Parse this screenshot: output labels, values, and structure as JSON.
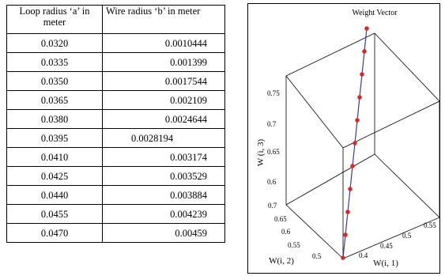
{
  "table": {
    "headers": [
      "Loop radius ‘a’ in meter",
      "Wire radius ‘b’ in meter"
    ],
    "rows": [
      [
        "0.0320",
        "0.0010444"
      ],
      [
        "0.0335",
        "0.001399"
      ],
      [
        "0.0350",
        "0.0017544"
      ],
      [
        "0.0365",
        "0.002109"
      ],
      [
        "0.0380",
        "0.0024644"
      ],
      [
        "0.0395",
        "0.0028194"
      ],
      [
        "0.0410",
        "0.003174"
      ],
      [
        "0.0425",
        "0.003529"
      ],
      [
        "0.0440",
        "0.003884"
      ],
      [
        "0.0455",
        "0.004239"
      ],
      [
        "0.0470",
        "0.00459"
      ]
    ]
  },
  "chart_data": {
    "type": "scatter",
    "title": "Weight Vector",
    "zlabel": "W (i, 3)",
    "ylabel": "W(i, 2)",
    "xlabel": "W(i, 1)",
    "z_ticks": [
      "0.75",
      "0.7",
      "0.65",
      "0.6"
    ],
    "y_ticks": [
      "0.7",
      "0.65",
      "0.6",
      "0.55",
      "0.5"
    ],
    "x_ticks": [
      "0.4",
      "0.45",
      "0.5",
      "0.55"
    ],
    "marker_color": "#d42a2a",
    "line_color": "#3b3b8f",
    "points": [
      {
        "x": 0.37,
        "y": 0.49,
        "z": 0.49
      },
      {
        "x": 0.38,
        "y": 0.51,
        "z": 0.52
      },
      {
        "x": 0.39,
        "y": 0.53,
        "z": 0.55
      },
      {
        "x": 0.4,
        "y": 0.55,
        "z": 0.58
      },
      {
        "x": 0.41,
        "y": 0.57,
        "z": 0.61
      },
      {
        "x": 0.42,
        "y": 0.59,
        "z": 0.64
      },
      {
        "x": 0.43,
        "y": 0.61,
        "z": 0.67
      },
      {
        "x": 0.44,
        "y": 0.63,
        "z": 0.7
      },
      {
        "x": 0.45,
        "y": 0.65,
        "z": 0.73
      },
      {
        "x": 0.46,
        "y": 0.67,
        "z": 0.76
      },
      {
        "x": 0.47,
        "y": 0.69,
        "z": 0.79
      }
    ]
  }
}
